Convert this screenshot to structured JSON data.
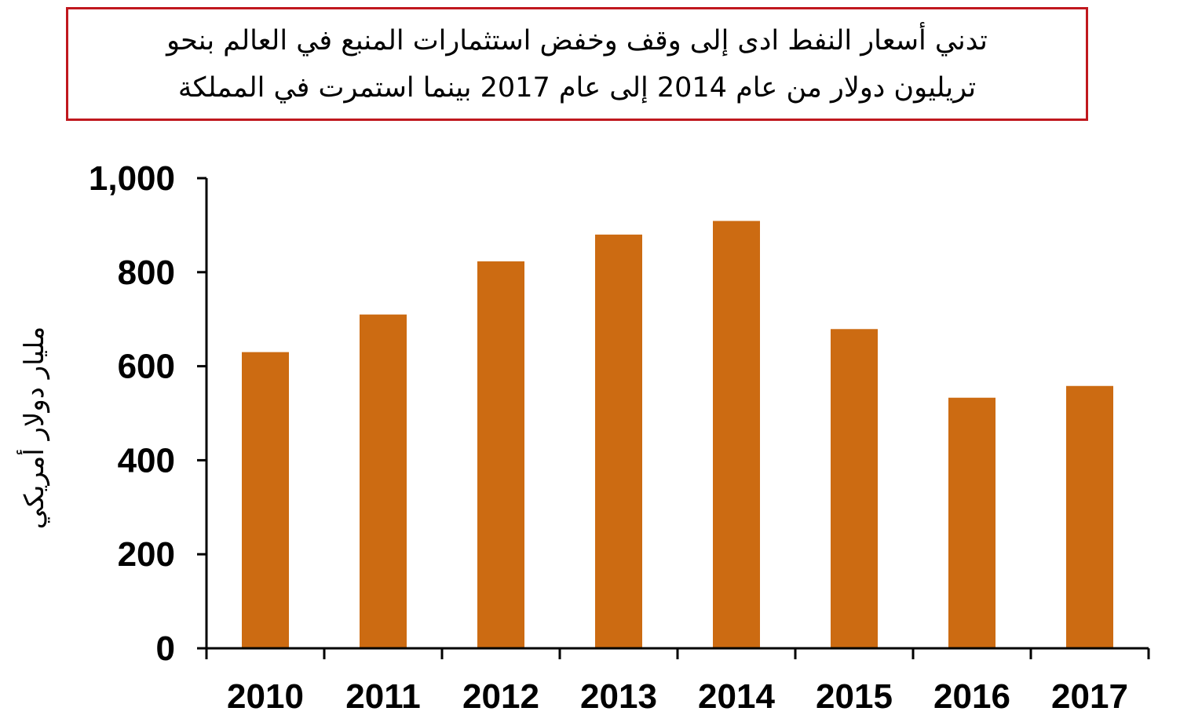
{
  "title": {
    "line1": "تدني أسعار النفط ادى إلى وقف وخفض استثمارات المنبع في العالم بنحو",
    "line2": "تريليون دولار من عام 2014 إلى عام 2017 بينما استمرت في المملكة"
  },
  "chart_data": {
    "type": "bar",
    "title": "تدني أسعار النفط ادى إلى وقف وخفض استثمارات المنبع في العالم بنحو تريليون دولار من عام 2014 إلى عام 2017 بينما استمرت في المملكة",
    "xlabel": "",
    "ylabel": "مليار دولار أمريكي",
    "categories": [
      "2010",
      "2011",
      "2012",
      "2013",
      "2014",
      "2015",
      "2016",
      "2017"
    ],
    "values": [
      630,
      710,
      823,
      880,
      909,
      679,
      533,
      558
    ],
    "ylim": [
      0,
      1000
    ],
    "yticks": [
      0,
      200,
      400,
      600,
      800,
      1000
    ],
    "ytick_labels": [
      "0",
      "200",
      "400",
      "600",
      "800",
      "1,000"
    ],
    "bar_color": "#cc6b12",
    "grid": false,
    "legend": "none"
  }
}
